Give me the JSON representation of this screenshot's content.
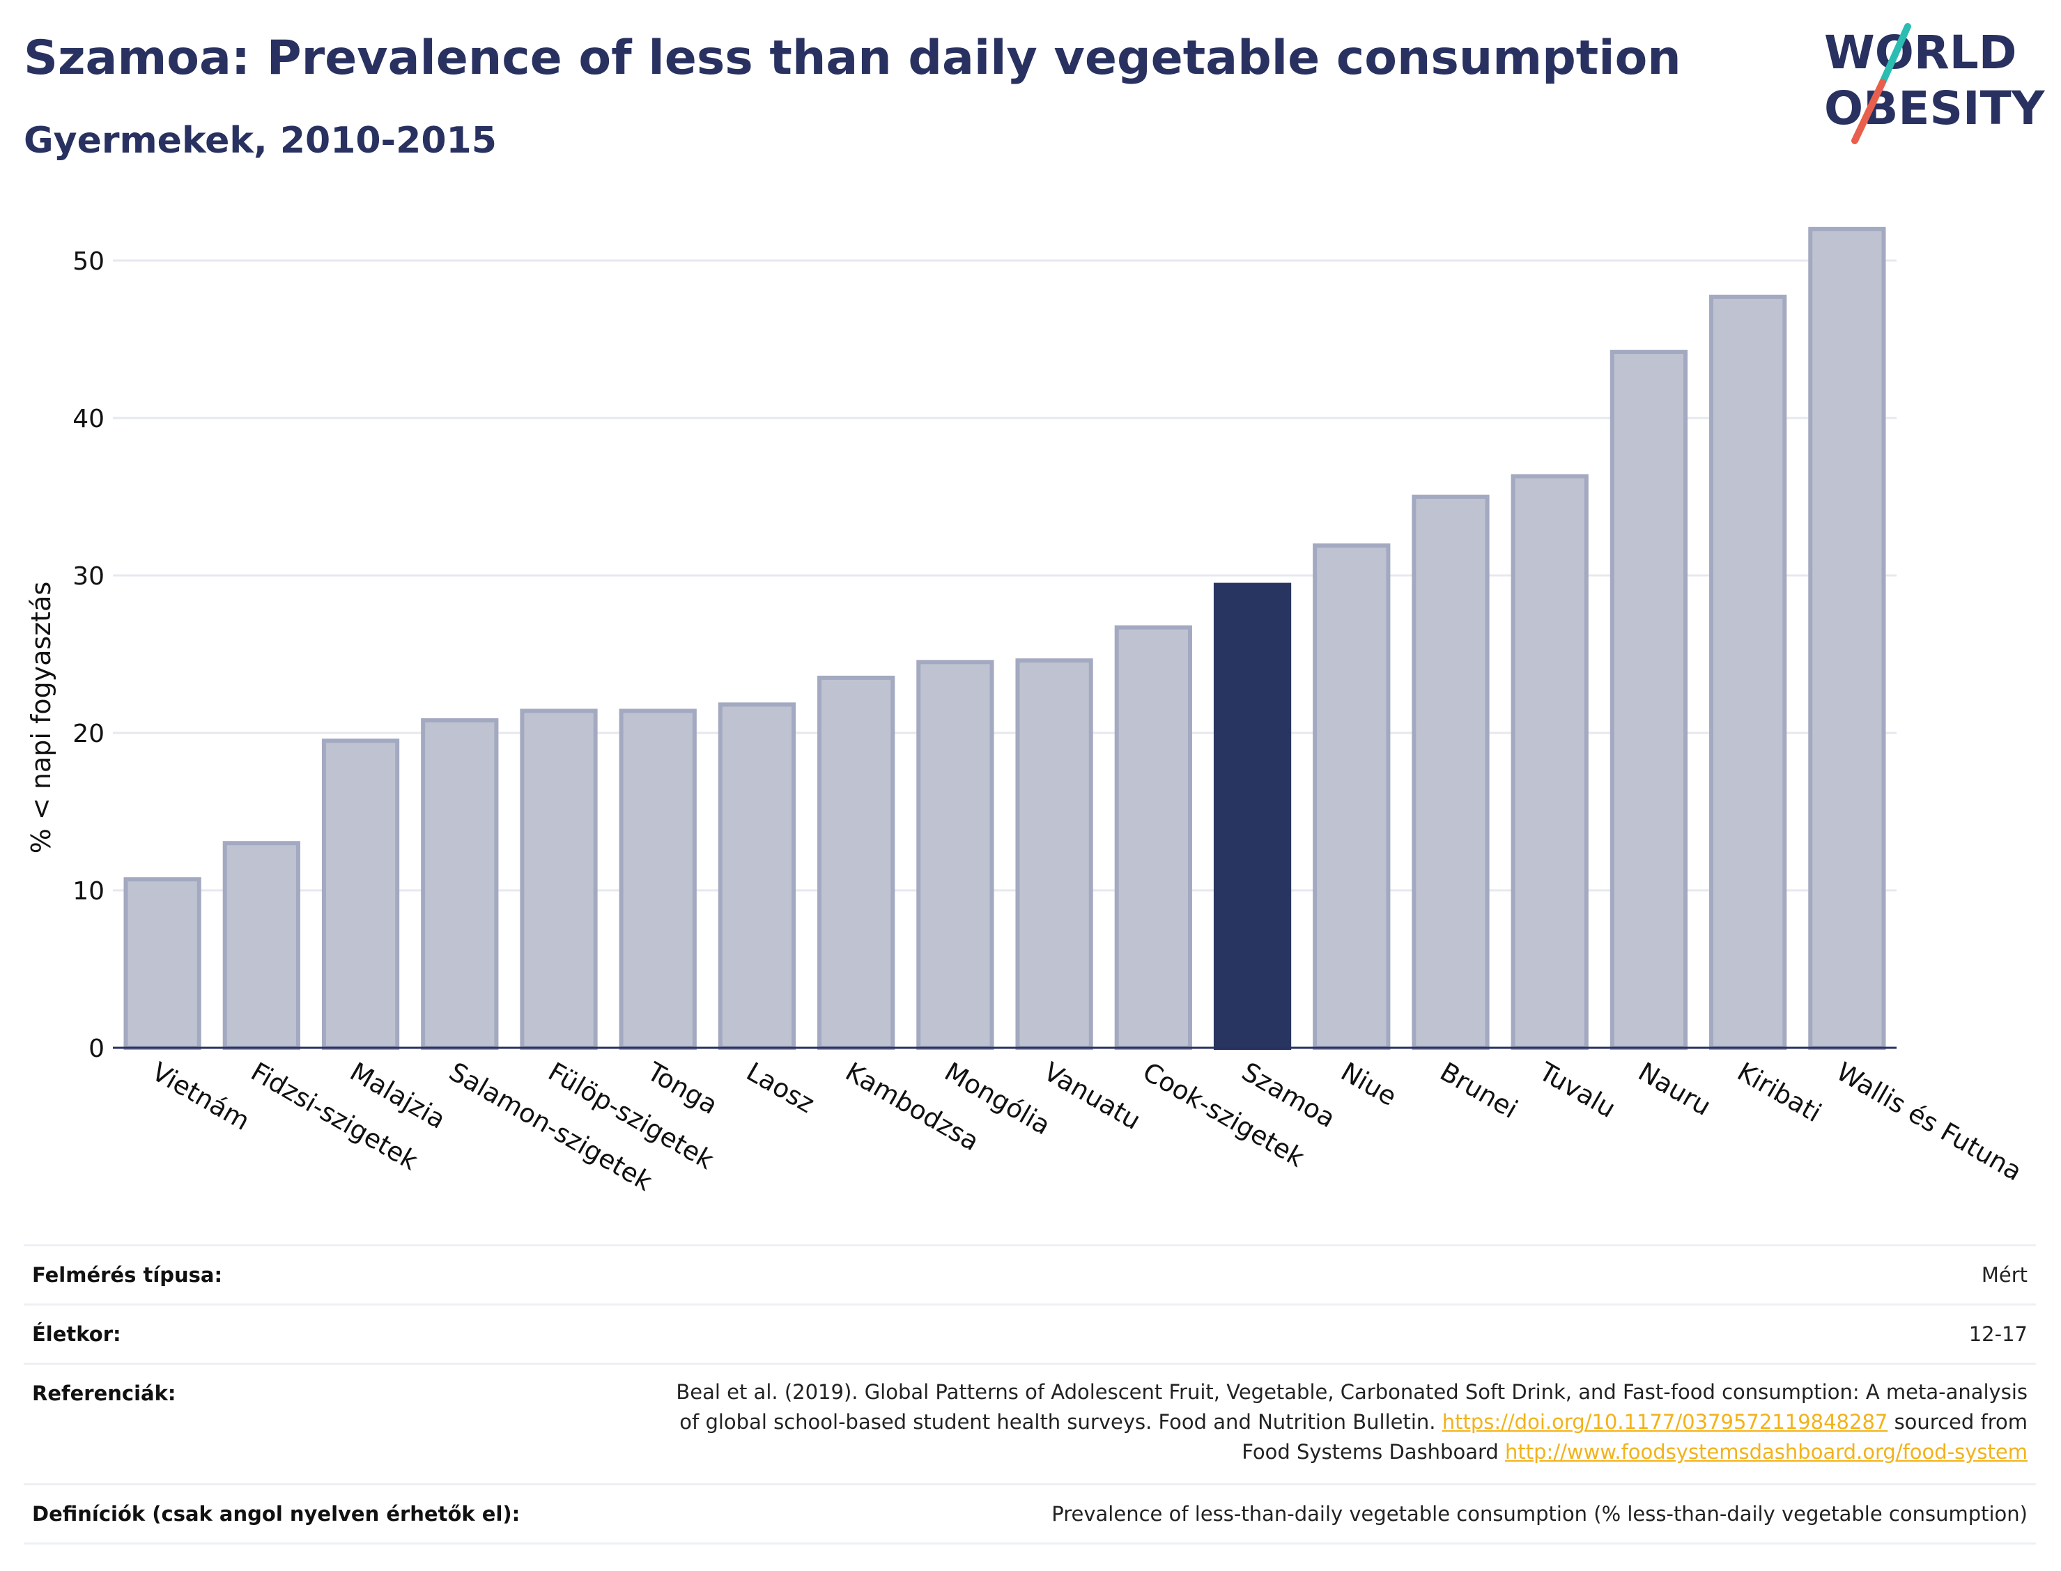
{
  "header": {
    "title": "Szamoa: Prevalence of less than daily vegetable consumption",
    "subtitle": "Gyermekek, 2010-2015"
  },
  "logo": {
    "line1": "WORLD",
    "line2": "OBESITY",
    "colors": {
      "text": "#283160",
      "slash_top": "#2bbcb2",
      "slash_bottom": "#e8604d"
    }
  },
  "chart_data": {
    "type": "bar",
    "ylabel": "% < napi fogyasztás",
    "ylim": [
      0,
      54
    ],
    "yticks": [
      0,
      10,
      20,
      30,
      40,
      50
    ],
    "grid": true,
    "categories": [
      "Vietnám",
      "Fidzsi-szigetek",
      "Malajzia",
      "Salamon-szigetek",
      "Fülöp-szigetek",
      "Tonga",
      "Laosz",
      "Kambodzsa",
      "Mongólia",
      "Vanuatu",
      "Cook-szigetek",
      "Szamoa",
      "Niue",
      "Brunei",
      "Tuvalu",
      "Nauru",
      "Kiribati",
      "Wallis és Futuna"
    ],
    "values": [
      10.7,
      13.0,
      19.5,
      20.8,
      21.4,
      21.4,
      21.8,
      23.5,
      24.5,
      24.6,
      26.7,
      29.4,
      31.9,
      35.0,
      36.3,
      44.2,
      47.7,
      52.0
    ],
    "highlight": "Szamoa",
    "colors": {
      "bar": "#bfc3d1",
      "bar_edge": "#a3a9c0",
      "highlight": "#283560",
      "grid": "#e6e8ef",
      "axis": "#283160"
    }
  },
  "info": {
    "survey_type": {
      "label": "Felmérés típusa:",
      "value": "Mért"
    },
    "age": {
      "label": "Életkor:",
      "value": "12-17"
    },
    "references": {
      "label": "Referenciák:",
      "line1": "Beal et al. (2019). Global Patterns of Adolescent Fruit, Vegetable, Carbonated Soft Drink, and Fast-food consumption: A meta-analysis",
      "line2_pre": "of global school-based student health surveys. Food and Nutrition Bulletin.",
      "doi": "https://doi.org/10.1177/0379572119848287",
      "line2_post": "sourced from",
      "line3_pre": "Food Systems Dashboard",
      "fsd_url": "http://www.foodsystemsdashboard.org/food-system"
    },
    "definitions": {
      "label": "Definíciók (csak angol nyelven érhetők el):",
      "value": "Prevalence of less-than-daily vegetable consumption (% less-than-daily vegetable consumption)"
    }
  }
}
